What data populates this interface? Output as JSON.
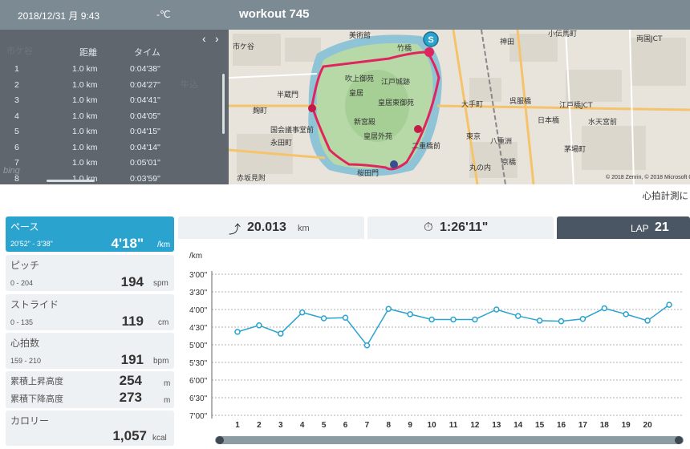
{
  "header": {
    "datetime": "2018/12/31 月 9:43",
    "weather": "-℃",
    "title": "workout 745"
  },
  "lap_table": {
    "columns": [
      "距離",
      "タイム"
    ],
    "rows": [
      {
        "lap": "1",
        "distance": "1.0 km",
        "time": "0:04'38\""
      },
      {
        "lap": "2",
        "distance": "1.0 km",
        "time": "0:04'27\""
      },
      {
        "lap": "3",
        "distance": "1.0 km",
        "time": "0:04'41\""
      },
      {
        "lap": "4",
        "distance": "1.0 km",
        "time": "0:04'05\""
      },
      {
        "lap": "5",
        "distance": "1.0 km",
        "time": "0:04'15\""
      },
      {
        "lap": "6",
        "distance": "1.0 km",
        "time": "0:04'14\""
      },
      {
        "lap": "7",
        "distance": "1.0 km",
        "time": "0:05'01\""
      },
      {
        "lap": "8",
        "distance": "1.0 km",
        "time": "0:03'59\""
      }
    ],
    "prev_icon": "chevron-left-icon",
    "next_icon": "chevron-right-icon"
  },
  "map": {
    "labels": [
      "市ケ谷",
      "美術館",
      "竹橋",
      "神田",
      "小伝馬町",
      "両国JCT",
      "半蔵門",
      "吹上御苑",
      "皇居",
      "江戸城跡",
      "皇居東御苑",
      "大手町",
      "日本橋",
      "呉服橋",
      "江戸橋JCT",
      "水天宮前",
      "麹町",
      "永田町",
      "国会議事堂前",
      "皇居外苑",
      "新宮殿",
      "二重橋前",
      "東京",
      "八重洲",
      "京橋",
      "茅場町",
      "赤坂見附",
      "桜田門",
      "丸の内"
    ],
    "start_marker": "S",
    "copyright": "© 2018 Zenrin, © 2018 Microsoft Co"
  },
  "hr_note": "心拍計測に",
  "metrics": {
    "pace": {
      "label": "ペース",
      "range": "20'52\" - 3'38\"",
      "value": "4'18\"",
      "unit": "/km"
    },
    "pitch": {
      "label": "ピッチ",
      "range": "0 - 204",
      "value": "194",
      "unit": "spm"
    },
    "stride": {
      "label": "ストライド",
      "range": "0 - 135",
      "value": "119",
      "unit": "cm"
    },
    "heart_rate": {
      "label": "心拍数",
      "range": "159 - 210",
      "value": "191",
      "unit": "bpm"
    },
    "elev_up": {
      "label": "累積上昇高度",
      "value": "254",
      "unit": "m"
    },
    "elev_down": {
      "label": "累積下降高度",
      "value": "273",
      "unit": "m"
    },
    "calories": {
      "label": "カロリー",
      "value": "1,057",
      "unit": "kcal"
    }
  },
  "summary": {
    "distance": {
      "icon": "route-icon",
      "value": "20.013",
      "unit": "km"
    },
    "duration": {
      "icon": "stopwatch-icon",
      "value": "1:26'11\""
    },
    "lap": {
      "label": "LAP",
      "value": "21"
    }
  },
  "chart_data": {
    "type": "line",
    "ylabel": "/km",
    "y_tick_labels": [
      "3'00\"",
      "3'30\"",
      "4'00\"",
      "4'30\"",
      "5'00\"",
      "5'30\"",
      "6'00\"",
      "6'30\"",
      "7'00\""
    ],
    "y_tick_seconds": [
      180,
      210,
      240,
      270,
      300,
      330,
      360,
      390,
      420
    ],
    "ylim_seconds": [
      180,
      420
    ],
    "y_inverted": true,
    "x_tick_labels": [
      "1",
      "2",
      "3",
      "4",
      "5",
      "6",
      "7",
      "8",
      "9",
      "10",
      "11",
      "12",
      "13",
      "14",
      "15",
      "16",
      "17",
      "18",
      "19",
      "20"
    ],
    "x": [
      1,
      2,
      3,
      4,
      5,
      6,
      7,
      8,
      9,
      10,
      11,
      12,
      13,
      14,
      15,
      16,
      17,
      18,
      19,
      20,
      21
    ],
    "series": [
      {
        "values": [
          278,
          267,
          281,
          245,
          255,
          254,
          301,
          239,
          248,
          257,
          257,
          257,
          240,
          251,
          259,
          260,
          256,
          238,
          248,
          259,
          232
        ]
      }
    ],
    "color": "#2aa3cf",
    "grid": true
  }
}
